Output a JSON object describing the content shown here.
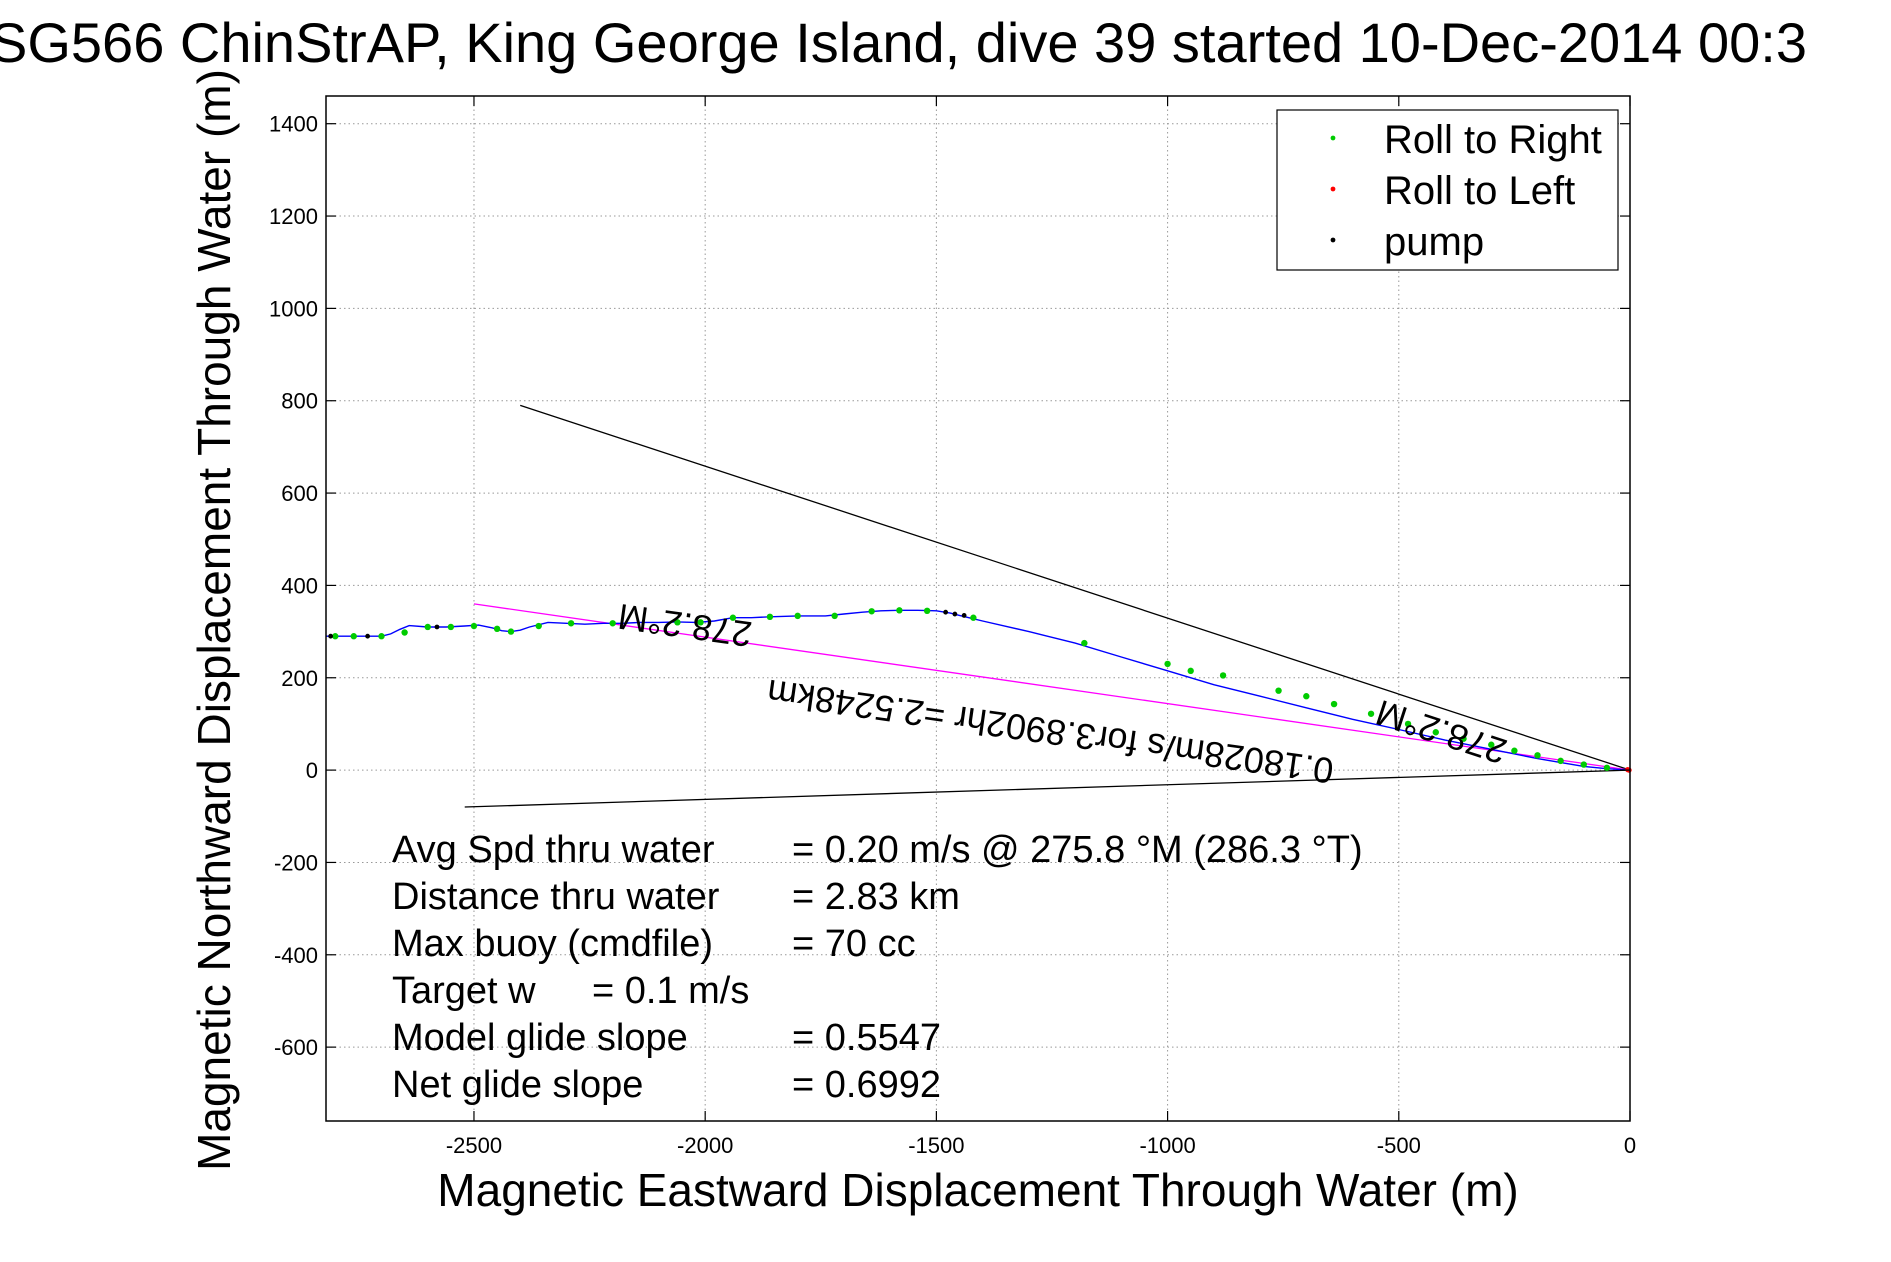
{
  "chart_data": {
    "type": "line",
    "title": "SG566 ChinStrAP, King George Island, dive 39 started 10-Dec-2014 00:3",
    "xlabel": "Magnetic Eastward Displacement Through Water (m)",
    "ylabel": "Magnetic Northward Displacement Through Water (m)",
    "xlim": [
      -2820,
      0
    ],
    "ylim": [
      -760,
      1460
    ],
    "xticks": [
      -2500,
      -2000,
      -1500,
      -1000,
      -500,
      0
    ],
    "xtick_labels": [
      "-2500",
      "-2000",
      "-1500",
      "-1000",
      "-500",
      "0"
    ],
    "yticks": [
      1400,
      1200,
      1000,
      800,
      600,
      400,
      200,
      0,
      -200,
      -400,
      -600
    ],
    "ytick_labels": [
      "1400",
      "1200",
      "1000",
      "800",
      "600",
      "400",
      "200",
      "0",
      "-200",
      "-400",
      "-600"
    ],
    "grid": true,
    "legend_position": "top-right",
    "legend": [
      {
        "label": "Roll to Right",
        "color": "#00cc00"
      },
      {
        "label": "Roll to Left",
        "color": "#ff0000"
      },
      {
        "label": "pump",
        "color": "#000000"
      }
    ],
    "series": [
      {
        "name": "track",
        "color": "#0000ff",
        "x": [
          -2820,
          -2780,
          -2740,
          -2700,
          -2680,
          -2660,
          -2640,
          -2600,
          -2560,
          -2520,
          -2490,
          -2460,
          -2440,
          -2420,
          -2400,
          -2380,
          -2340,
          -2300,
          -2260,
          -2220,
          -2180,
          -2140,
          -2100,
          -2060,
          -2020,
          -1980,
          -1940,
          -1900,
          -1860,
          -1800,
          -1740,
          -1700,
          -1660,
          -1620,
          -1580,
          -1540,
          -1500,
          -1470,
          -1450,
          -1430,
          -1400,
          -1300,
          -1200,
          -1100,
          -1000,
          -900,
          -800,
          -700,
          -600,
          -500,
          -400,
          -300,
          -200,
          -100,
          -50,
          0
        ],
        "y": [
          290,
          290,
          290,
          290,
          295,
          305,
          313,
          310,
          310,
          312,
          314,
          308,
          302,
          300,
          303,
          310,
          320,
          318,
          316,
          318,
          318,
          320,
          320,
          321,
          320,
          323,
          330,
          330,
          332,
          334,
          334,
          338,
          342,
          345,
          346,
          346,
          345,
          340,
          335,
          330,
          323,
          300,
          275,
          245,
          215,
          185,
          160,
          135,
          110,
          88,
          65,
          45,
          25,
          8,
          3,
          0
        ]
      }
    ],
    "roll_to_right_points": {
      "x": [
        -2800,
        -2760,
        -2700,
        -2650,
        -2600,
        -2550,
        -2500,
        -2450,
        -2420,
        -2360,
        -2290,
        -2200,
        -2060,
        -2010,
        -1940,
        -1860,
        -1800,
        -1720,
        -1640,
        -1580,
        -1520,
        -1420,
        -1180,
        -1000,
        -950,
        -880,
        -760,
        -700,
        -640,
        -560,
        -480,
        -420,
        -360,
        -300,
        -250,
        -200,
        -150,
        -100,
        -50
      ],
      "y": [
        290,
        290,
        290,
        298,
        310,
        310,
        312,
        306,
        300,
        312,
        318,
        318,
        320,
        320,
        330,
        332,
        334,
        334,
        344,
        346,
        345,
        330,
        275,
        230,
        215,
        205,
        172,
        160,
        143,
        122,
        100,
        82,
        68,
        55,
        42,
        32,
        20,
        12,
        5
      ]
    },
    "roll_to_left_points": {
      "x": [
        -5,
        -2
      ],
      "y": [
        1,
        0
      ]
    },
    "pump_points": {
      "x": [
        -2810,
        -2730,
        -2580,
        -1480,
        -1460,
        -1440
      ],
      "y": [
        290,
        290,
        310,
        342,
        338,
        335
      ]
    },
    "reference_lines": [
      {
        "name": "upper",
        "color": "#000000",
        "x": [
          -2400,
          0
        ],
        "y": [
          790,
          0
        ]
      },
      {
        "name": "lower",
        "color": "#000000",
        "x": [
          -2520,
          0
        ],
        "y": [
          -80,
          0
        ]
      },
      {
        "name": "net",
        "color": "#ff00ff",
        "x": [
          -2500,
          0
        ],
        "y": [
          360,
          0
        ]
      }
    ],
    "annotations": [
      {
        "text": "278.2°M",
        "x": -2040,
        "y": 340,
        "rotation": 188
      },
      {
        "text": "0.18028m/s for3.8902hr =2.5248km",
        "x": -1250,
        "y": 110,
        "rotation": 188
      },
      {
        "text": "278.2°M",
        "x": -400,
        "y": 108,
        "rotation": 198
      }
    ],
    "stats": [
      {
        "label": "Avg Spd thru water",
        "value": "=  0.20 m/s @ 275.8 °M (286.3 °T)"
      },
      {
        "label": "Distance thru water",
        "value": "=  2.83 km"
      },
      {
        "label": "Max buoy (cmdfile)",
        "value": "= 70 cc"
      },
      {
        "label": "Target w",
        "value": "= 0.1 m/s"
      },
      {
        "label": "Model glide slope",
        "value": "= 0.5547"
      },
      {
        "label": "Net glide slope",
        "value": "= 0.6992"
      }
    ]
  }
}
